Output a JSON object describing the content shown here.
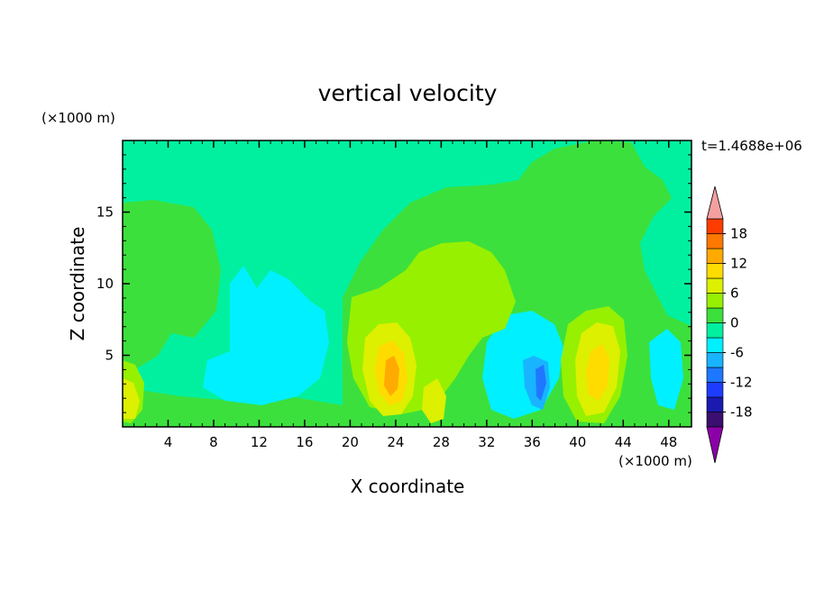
{
  "chart_data": {
    "type": "heatmap",
    "title": "vertical velocity",
    "xlabel": "X coordinate",
    "ylabel": "Z coordinate",
    "x_unit": "(×1000 m)",
    "y_unit": "(×1000 m)",
    "time_label": "t=1.4688e+06",
    "xlim": [
      0,
      50
    ],
    "ylim": [
      0,
      20
    ],
    "x_ticks": [
      4,
      8,
      12,
      16,
      20,
      24,
      28,
      32,
      36,
      40,
      44,
      48
    ],
    "y_ticks": [
      5,
      10,
      15
    ],
    "colorbar": {
      "levels": [
        -21,
        -18,
        -15,
        -12,
        -9,
        -6,
        -3,
        0,
        3,
        6,
        9,
        12,
        15,
        18,
        21
      ],
      "tick_labels": [
        "18",
        "12",
        "6",
        "0",
        "-6",
        "-12",
        "-18"
      ],
      "tick_values": [
        18,
        12,
        6,
        0,
        -6,
        -12,
        -18
      ],
      "colors": [
        "#3b0f70",
        "#1a1ab0",
        "#1e3cff",
        "#1e78ff",
        "#19b4ff",
        "#00f0ff",
        "#00f0a0",
        "#3ce03c",
        "#96f000",
        "#dcf000",
        "#ffdc00",
        "#ffaa00",
        "#ff7800",
        "#ff3c00",
        "#e61e1e"
      ],
      "under_color": "#8c00a8",
      "over_color": "#f5a0a0"
    },
    "features": [
      {
        "kind": "updraft",
        "x": 23.5,
        "z": 4,
        "peak": 12
      },
      {
        "kind": "updraft",
        "x": 42,
        "z": 4,
        "peak": 9
      },
      {
        "kind": "updraft",
        "x": 27.5,
        "z": 2,
        "peak": 6
      },
      {
        "kind": "updraft",
        "x": 0.5,
        "z": 2,
        "peak": 6
      },
      {
        "kind": "downdraft",
        "x": 36,
        "z": 3,
        "peak": -9
      },
      {
        "kind": "downdraft",
        "x": 14,
        "z": 5,
        "peak": -6
      }
    ]
  }
}
